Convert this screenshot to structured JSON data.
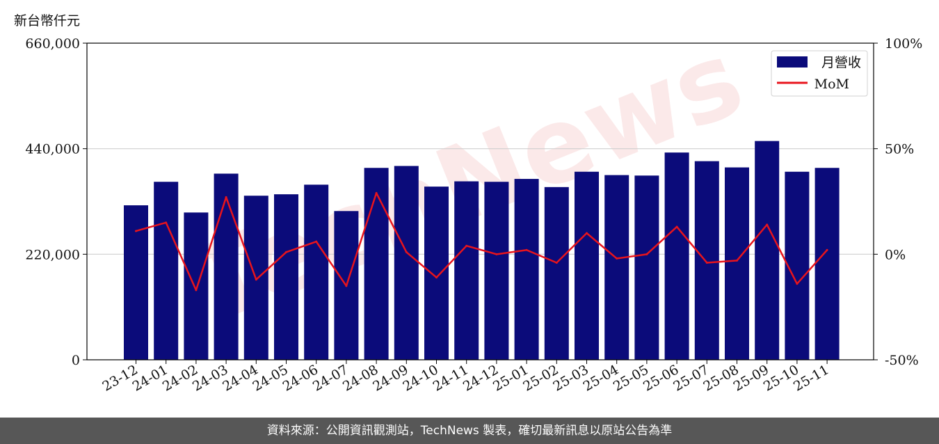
{
  "unit_label": "新台幣仟元",
  "footer_text": "資料來源：公開資訊觀測站，TechNews 製表，確切最新訊息以原站公告為準",
  "watermark_text": "TechNews",
  "colors": {
    "bar": "#0b0b7a",
    "line": "#e8141c",
    "grid": "#cfcfcf",
    "watermark": "#f2b8b8"
  },
  "chart_data": {
    "type": "bar",
    "categories": [
      "23-12",
      "24-01",
      "24-02",
      "24-03",
      "24-04",
      "24-05",
      "24-06",
      "24-07",
      "24-08",
      "24-09",
      "24-10",
      "24-11",
      "24-12",
      "25-01",
      "25-02",
      "25-03",
      "25-04",
      "25-05",
      "25-06",
      "25-07",
      "25-08",
      "25-09",
      "25-10",
      "25-11"
    ],
    "series": [
      {
        "name": "月營收",
        "type": "bar",
        "axis": "left",
        "values": [
          322000,
          371000,
          307000,
          388000,
          342000,
          345000,
          365000,
          310000,
          400000,
          404000,
          361000,
          372000,
          371000,
          377000,
          360000,
          392000,
          385000,
          384000,
          432000,
          414000,
          401000,
          456000,
          392000,
          400000
        ]
      },
      {
        "name": "MoM",
        "type": "line",
        "axis": "right",
        "values": [
          11,
          15,
          -17,
          27,
          -12,
          1,
          6,
          -15,
          29,
          1,
          -11,
          4,
          0,
          2,
          -4,
          10,
          -2,
          0,
          13,
          -4,
          -3,
          14,
          -14,
          2
        ]
      }
    ],
    "y_left": {
      "ylim": [
        0,
        660000
      ],
      "ticks": [
        "0",
        "220,000",
        "440,000",
        "660,000"
      ]
    },
    "y_right": {
      "ylim": [
        -50,
        100
      ],
      "ticks": [
        "-50%",
        "0%",
        "50%",
        "100%"
      ]
    },
    "grid": "horizontal",
    "legend_position": "top-right"
  }
}
